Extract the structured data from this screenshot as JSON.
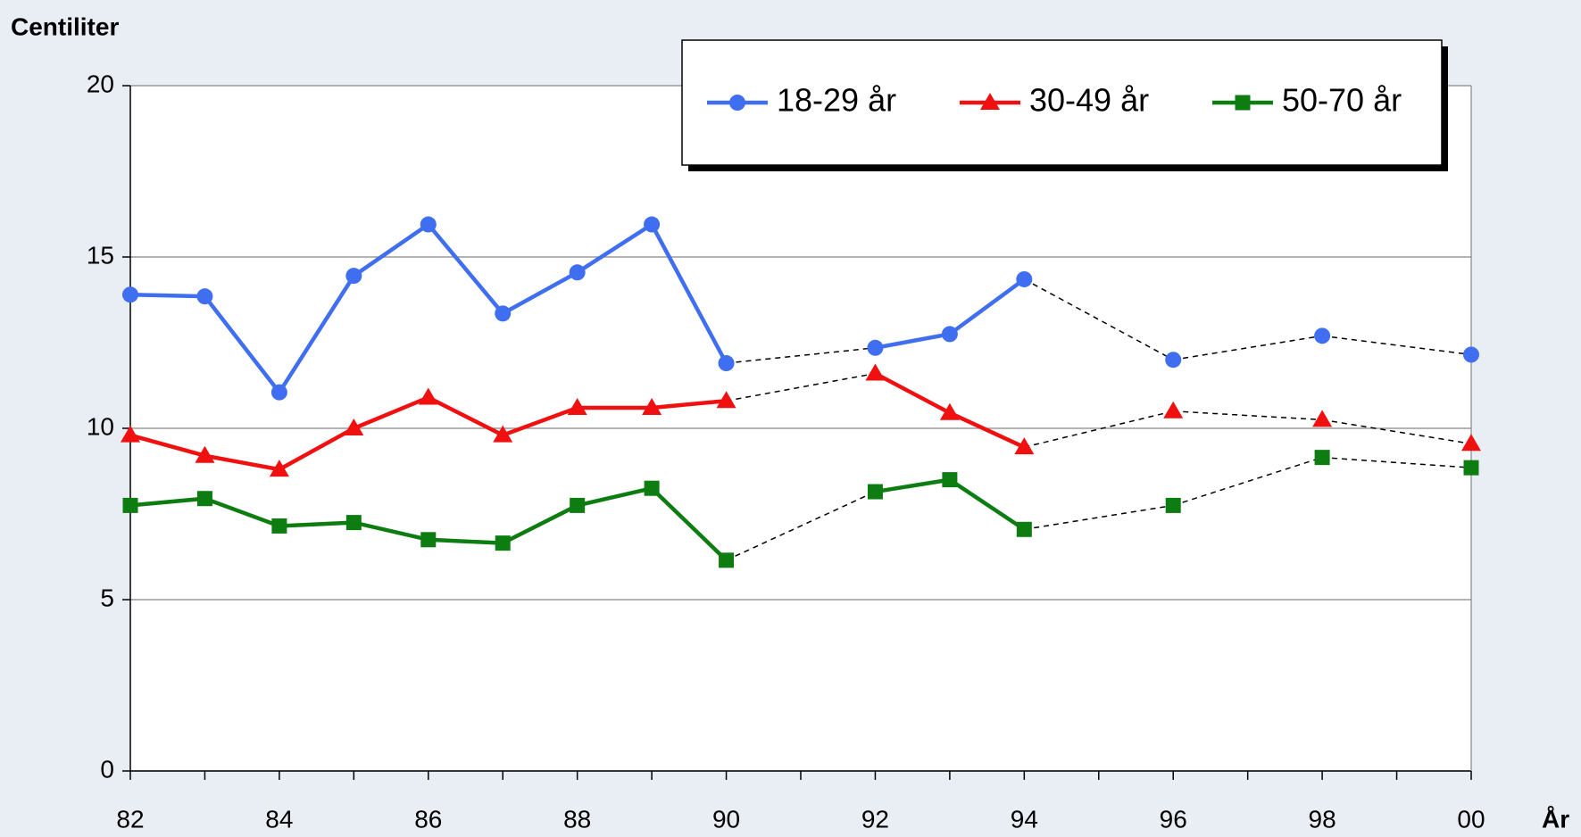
{
  "chart_data": {
    "type": "line",
    "y_label": "Centiliter",
    "x_label": "År",
    "categories": [
      "82",
      null,
      "84",
      null,
      "86",
      null,
      "88",
      null,
      "90",
      null,
      "92",
      null,
      "94",
      null,
      "96",
      null,
      "98",
      null,
      "00"
    ],
    "series": [
      {
        "name": "18-29 år",
        "color": "#3f6ff0",
        "marker": "circle",
        "values": [
          13.9,
          13.85,
          11.05,
          14.45,
          15.95,
          13.35,
          14.55,
          15.95,
          11.9,
          null,
          12.35,
          12.75,
          14.35,
          null,
          12.0,
          null,
          12.7,
          null,
          12.15
        ]
      },
      {
        "name": "30-49 år",
        "color": "#f01010",
        "marker": "triangle",
        "values": [
          9.8,
          9.2,
          8.8,
          10.0,
          10.9,
          9.8,
          10.6,
          10.6,
          10.8,
          null,
          11.6,
          10.45,
          9.45,
          null,
          10.5,
          null,
          10.25,
          null,
          9.55
        ]
      },
      {
        "name": "50-70 år",
        "color": "#0d7d12",
        "marker": "square",
        "values": [
          7.75,
          7.95,
          7.15,
          7.25,
          6.75,
          6.65,
          7.75,
          8.25,
          6.15,
          null,
          8.15,
          8.5,
          7.05,
          null,
          7.75,
          null,
          9.15,
          null,
          8.85
        ]
      }
    ],
    "ylim": [
      0,
      20
    ],
    "yticks": [
      0,
      5,
      10,
      15,
      20
    ],
    "grid": true,
    "legend": "top-right"
  }
}
